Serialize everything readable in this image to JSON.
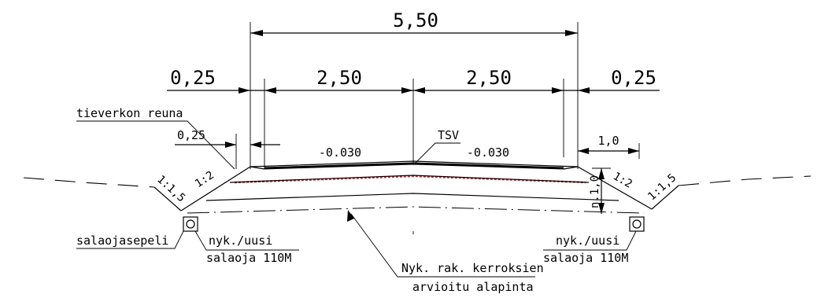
{
  "dimensions": {
    "total_width": "5,50",
    "left_shoulder": "0,25",
    "left_lane": "2,50",
    "right_lane": "2,50",
    "right_shoulder": "0,25",
    "edge_offset": "0,25",
    "right_offset": "1,0"
  },
  "slopes": {
    "left_crossfall": "-0.030",
    "right_crossfall": "-0.030",
    "left_inner_slope": "1:2",
    "left_outer_slope": "1:1,5",
    "right_inner_slope": "1:2",
    "right_outer_slope": "1:1,5"
  },
  "labels": {
    "road_edge": "tieverkon reuna",
    "tsv": "TSV",
    "depth": "n.1,0",
    "drain_gravel": "salaojasepeli",
    "left_drain_line1": "nyk./uusi",
    "left_drain_line2": "salaoja 110M",
    "right_drain_line1": "nyk./uusi",
    "right_drain_line2": "salaoja 110M",
    "layers_line1": "Nyk. rak. kerroksien",
    "layers_line2": "arvioitu alapinta"
  }
}
